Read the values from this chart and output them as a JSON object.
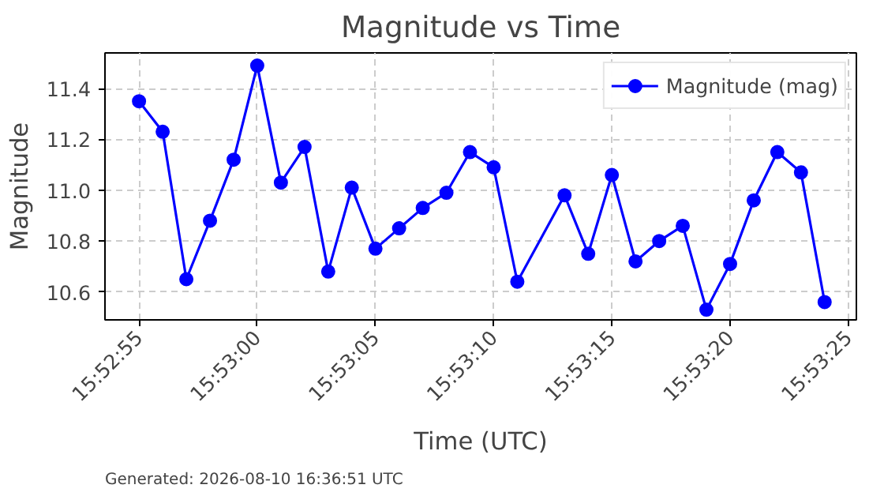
{
  "chart_data": {
    "type": "line",
    "title": "Magnitude vs Time",
    "xlabel": "Time (UTC)",
    "ylabel": "Magnitude",
    "annotations": [
      "Generated: 2026-08-10 16:36:51 UTC"
    ],
    "x": [
      15.881944,
      15.882222,
      15.8825,
      15.882778,
      15.883056,
      15.883333,
      15.883611,
      15.883889,
      15.884167,
      15.884444,
      15.884722,
      15.885,
      15.885278,
      15.885556,
      15.885833,
      15.886111,
      15.886389,
      15.886944,
      15.887222,
      15.8875,
      15.887778,
      15.888056,
      15.888333,
      15.888611,
      15.888889,
      15.889167,
      15.889444,
      15.889722,
      15.89
    ],
    "series": [
      {
        "name": "Magnitude (mag)",
        "color": "#0000ff",
        "values": [
          11.35,
          11.23,
          10.65,
          10.88,
          11.12,
          11.49,
          11.03,
          11.17,
          10.68,
          11.01,
          10.77,
          10.85,
          10.93,
          10.99,
          11.15,
          11.09,
          10.64,
          10.98,
          10.75,
          11.06,
          10.72,
          10.8,
          10.86,
          10.53,
          10.71,
          10.96,
          11.15,
          11.07,
          10.56
        ]
      }
    ],
    "xlim": [
      15.881544,
      15.890373
    ],
    "xticks": [
      {
        "value": 15.881944,
        "label": "15:52:55"
      },
      {
        "value": 15.883333,
        "label": "15:53:00"
      },
      {
        "value": 15.884722,
        "label": "15:53:05"
      },
      {
        "value": 15.886111,
        "label": "15:53:10"
      },
      {
        "value": 15.8875,
        "label": "15:53:15"
      },
      {
        "value": 15.888889,
        "label": "15:53:20"
      },
      {
        "value": 15.890278,
        "label": "15:53:25"
      }
    ],
    "ylim": [
      10.49,
      11.54
    ],
    "yticks": [
      10.6,
      10.8,
      {
        "value": 11,
        "label": "11.0"
      },
      11.2,
      11.4
    ],
    "grid": true,
    "legend": "top right",
    "marker": "circle",
    "line_style": "solid"
  }
}
